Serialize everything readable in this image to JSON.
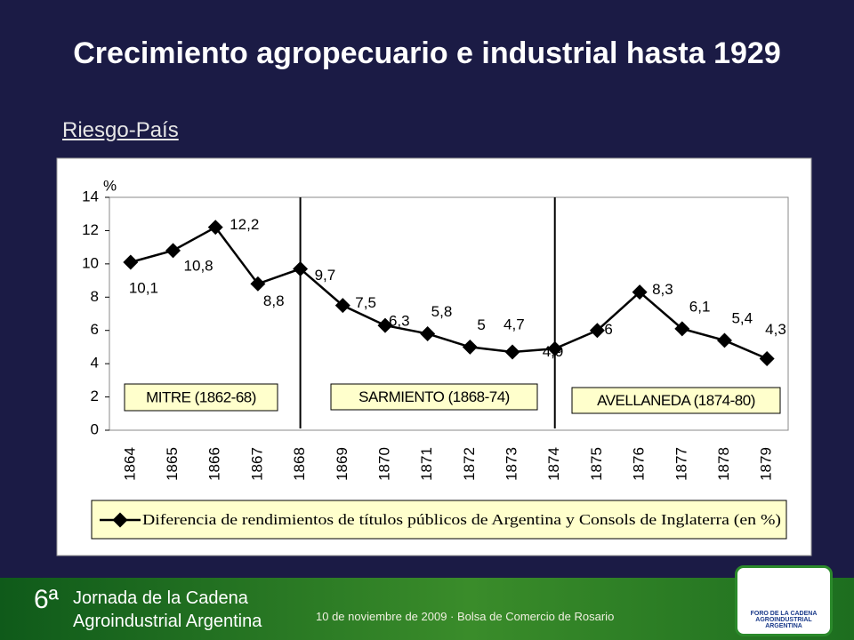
{
  "slide": {
    "title": "Crecimiento agropecuario e industrial hasta 1929",
    "subtitle": "Riesgo-País",
    "footer": {
      "edition": "6ª",
      "event_line1": "Jornada de la Cadena",
      "event_line2": "Agroindustrial Argentina",
      "date_place": "10 de noviembre de 2009 · Bolsa de Comercio de Rosario",
      "logo_text": "FORO DE LA CADENA AGROINDUSTRIAL ARGENTINA"
    }
  },
  "chart_data": {
    "type": "line",
    "y_label": "%",
    "categories": [
      "1864",
      "1865",
      "1866",
      "1867",
      "1868",
      "1869",
      "1870",
      "1871",
      "1872",
      "1873",
      "1874",
      "1875",
      "1876",
      "1877",
      "1878",
      "1879"
    ],
    "series": [
      {
        "name": "Diferencia de rendimientos de títulos públicos de Argentina y Consols de Inglaterra (en %)",
        "color": "#000000",
        "values": [
          10.1,
          10.8,
          12.2,
          8.8,
          9.7,
          7.5,
          6.3,
          5.8,
          5,
          4.7,
          4.9,
          6,
          8.3,
          6.1,
          5.4,
          4.3
        ],
        "value_labels": [
          "10,1",
          "10,8",
          "12,2",
          "8,8",
          "9,7",
          "7,5",
          "6,3",
          "5,8",
          "5",
          "4,7",
          "4,9",
          "6",
          "8,3",
          "6,1",
          "5,4",
          "4,3"
        ]
      }
    ],
    "ylim": [
      0,
      14
    ],
    "yticks": [
      0,
      2,
      4,
      6,
      8,
      10,
      12,
      14
    ],
    "vertical_lines": [
      "1868",
      "1874"
    ],
    "periods": [
      "MITRE (1862-68)",
      "SARMIENTO (1868-74)",
      "AVELLANEDA (1874-80)"
    ],
    "legend": "bottom"
  }
}
